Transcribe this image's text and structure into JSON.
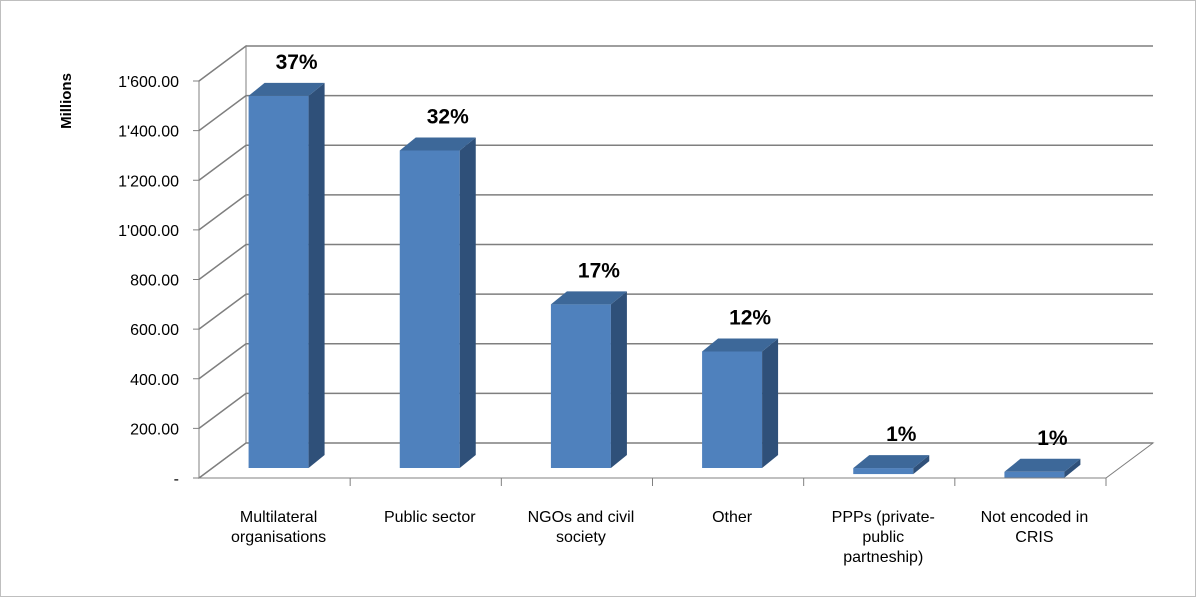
{
  "chart_data": {
    "type": "bar",
    "style": "3d-column",
    "ylabel": "Millions",
    "ylim": [
      0,
      1600
    ],
    "yticks": [
      0,
      200,
      400,
      600,
      800,
      1000,
      1200,
      1400,
      1600
    ],
    "ytick_labels": [
      "-",
      "200.00",
      "400.00",
      "600.00",
      "800.00",
      "1'000.00",
      "1'200.00",
      "1'400.00",
      "1'600.00"
    ],
    "grid": true,
    "categories": [
      [
        "Multilateral",
        "organisations"
      ],
      [
        "Public sector"
      ],
      [
        "NGOs and civil",
        "society"
      ],
      [
        "Other"
      ],
      [
        "PPPs (private-",
        "public",
        "partneship)"
      ],
      [
        "Not encoded in",
        "CRIS"
      ]
    ],
    "values": [
      1540,
      1320,
      700,
      510,
      40,
      25
    ],
    "data_labels": [
      "37%",
      "32%",
      "17%",
      "12%",
      "1%",
      "1%"
    ],
    "colors": {
      "bar_front": "#4f81bd",
      "bar_side": "#2f5079",
      "bar_top": "#3d6899",
      "grid": "#7f7f7f",
      "axis": "#808080"
    }
  }
}
